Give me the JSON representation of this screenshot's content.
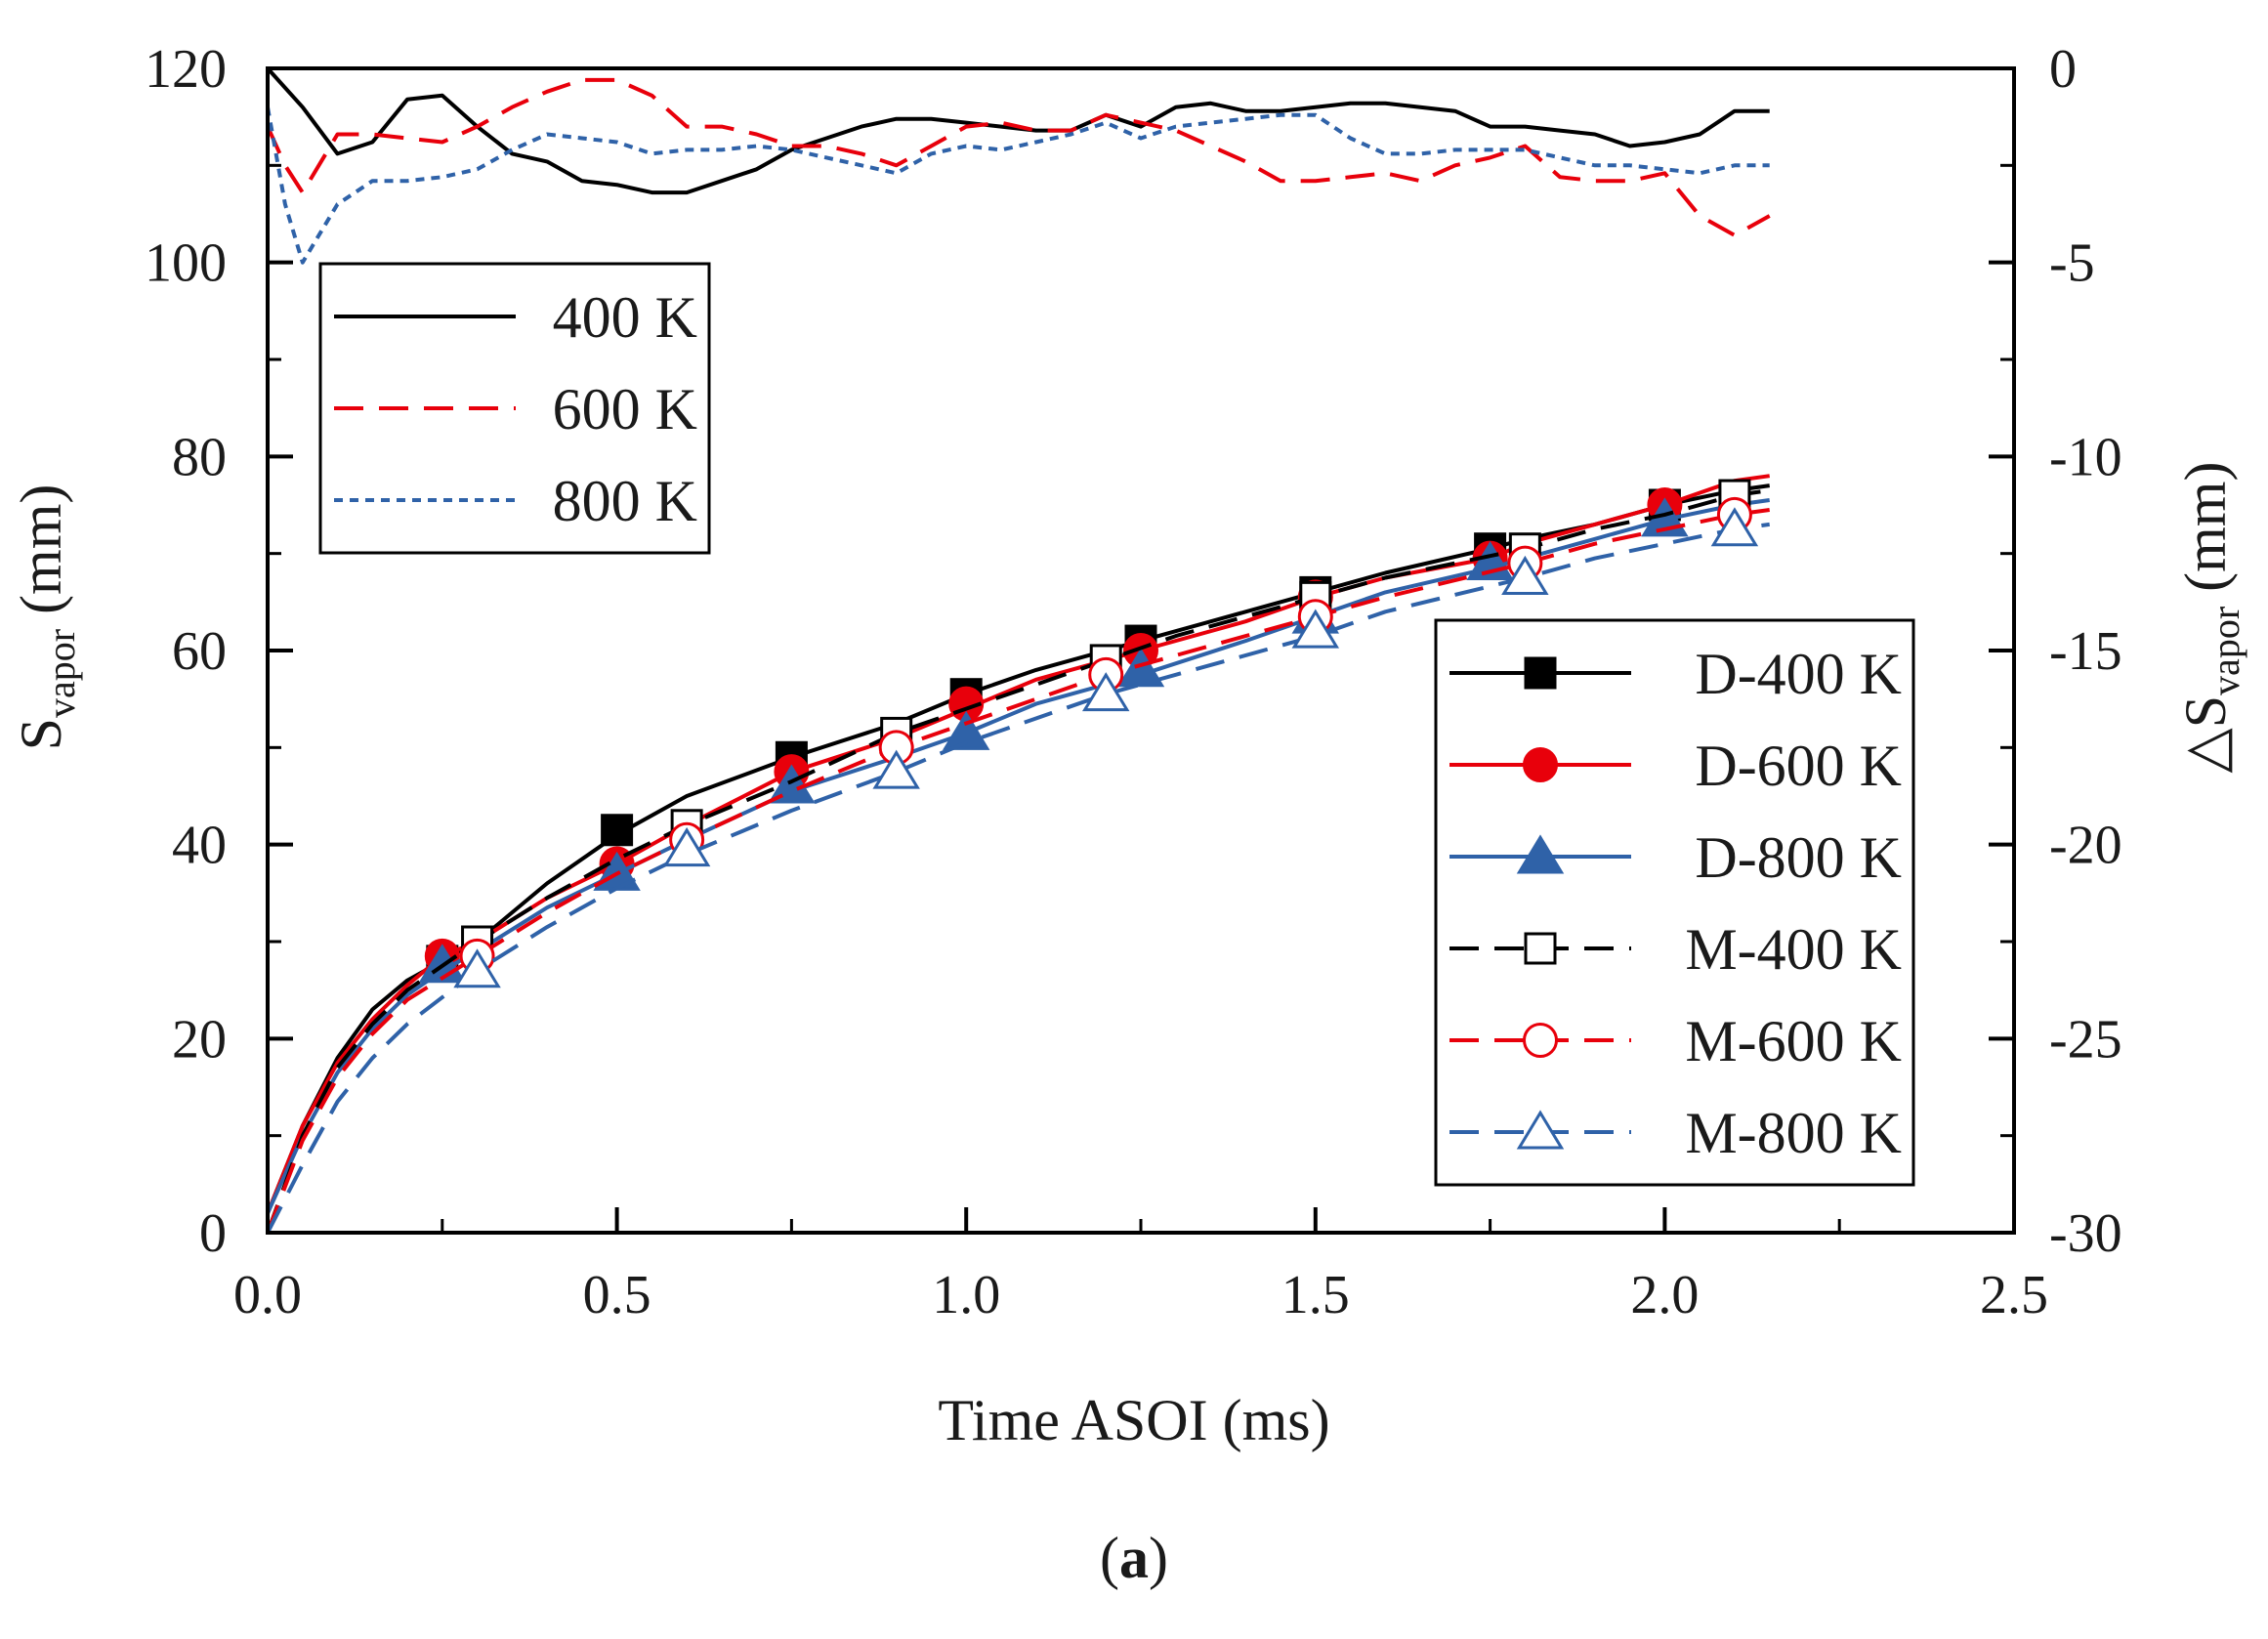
{
  "chart_data": {
    "type": "line",
    "caption_open": "(",
    "caption_letter": "a",
    "caption_close": ")",
    "xlabel": "Time ASOI (ms)",
    "ylabel_main": "S",
    "ylabel_sub": "vapor",
    "ylabel_unit": " (mm)",
    "y2label_prefix": "△S",
    "y2label_sub": "vapor",
    "y2label_unit": " (mm)",
    "xlim": [
      0,
      2.5
    ],
    "ylim": [
      0,
      120
    ],
    "y2lim": [
      -30,
      0
    ],
    "x_ticks": [
      {
        "value": 0,
        "label": "0.0"
      },
      {
        "value": 0.5,
        "label": "0.5"
      },
      {
        "value": 1.0,
        "label": "1.0"
      },
      {
        "value": 1.5,
        "label": "1.5"
      },
      {
        "value": 2.0,
        "label": "2.0"
      },
      {
        "value": 2.5,
        "label": "2.5"
      }
    ],
    "y_ticks": [
      {
        "value": 0,
        "label": "0"
      },
      {
        "value": 20,
        "label": "20"
      },
      {
        "value": 40,
        "label": "40"
      },
      {
        "value": 60,
        "label": "60"
      },
      {
        "value": 80,
        "label": "80"
      },
      {
        "value": 100,
        "label": "100"
      },
      {
        "value": 120,
        "label": "120"
      }
    ],
    "y2_ticks": [
      {
        "value": 0,
        "label": "0"
      },
      {
        "value": -5,
        "label": "-5"
      },
      {
        "value": -10,
        "label": "-10"
      },
      {
        "value": -15,
        "label": "-15"
      },
      {
        "value": -20,
        "label": "-20"
      },
      {
        "value": -25,
        "label": "-25"
      },
      {
        "value": -30,
        "label": "-30"
      }
    ],
    "grid": false,
    "legend_positions": [
      "upper-left",
      "lower-right"
    ],
    "series": [
      {
        "name": "D-400 K",
        "axis": "left",
        "color": "#000000",
        "dash": "solid",
        "marker": "square",
        "marker_fill": "filled",
        "x": [
          0,
          0.05,
          0.1,
          0.15,
          0.2,
          0.25,
          0.3,
          0.4,
          0.5,
          0.6,
          0.75,
          0.9,
          1.0,
          1.1,
          1.25,
          1.4,
          1.5,
          1.6,
          1.75,
          1.8,
          1.9,
          2.0,
          2.1,
          2.15
        ],
        "y": [
          2,
          11,
          18,
          23,
          26,
          28,
          30,
          36,
          41,
          45,
          49,
          52.5,
          55.5,
          58,
          61,
          64,
          66,
          68,
          70.5,
          71.5,
          73,
          75,
          76.5,
          77
        ],
        "marker_x": [
          0.25,
          0.5,
          0.75,
          1.0,
          1.25,
          1.5,
          1.75,
          2.0
        ],
        "marker_y": [
          28,
          41.5,
          49,
          55.5,
          61,
          66,
          70.5,
          75
        ]
      },
      {
        "name": "D-600 K",
        "axis": "left",
        "color": "#e8000b",
        "dash": "solid",
        "marker": "circle",
        "marker_fill": "filled",
        "x": [
          0,
          0.05,
          0.1,
          0.15,
          0.2,
          0.25,
          0.3,
          0.4,
          0.5,
          0.6,
          0.75,
          0.9,
          1.0,
          1.1,
          1.25,
          1.4,
          1.5,
          1.6,
          1.75,
          1.8,
          1.9,
          2.0,
          2.1,
          2.15
        ],
        "y": [
          2,
          11,
          17.5,
          22,
          25.5,
          28.5,
          30,
          34.5,
          38,
          42,
          47.5,
          51,
          54,
          57,
          60,
          63,
          65.5,
          67.5,
          69.5,
          71,
          73,
          75,
          77.5,
          78
        ],
        "marker_x": [
          0.25,
          0.5,
          0.75,
          1.0,
          1.25,
          1.5,
          1.75,
          2.0
        ],
        "marker_y": [
          28.5,
          38,
          47.5,
          54.5,
          60,
          65.5,
          69.5,
          75
        ]
      },
      {
        "name": "D-800 K",
        "axis": "left",
        "color": "#2f62a8",
        "dash": "solid",
        "marker": "triangle",
        "marker_fill": "filled",
        "x": [
          0,
          0.05,
          0.1,
          0.15,
          0.2,
          0.25,
          0.3,
          0.4,
          0.5,
          0.6,
          0.75,
          0.9,
          1.0,
          1.1,
          1.25,
          1.4,
          1.5,
          1.6,
          1.75,
          1.8,
          1.9,
          2.0,
          2.1,
          2.15
        ],
        "y": [
          2,
          10,
          16.5,
          21,
          24.5,
          27,
          29,
          33.5,
          37,
          40.5,
          45.5,
          49,
          51.5,
          54.5,
          57.5,
          61,
          63.5,
          66,
          68.5,
          69.5,
          71.5,
          73.5,
          75,
          75.5
        ],
        "marker_x": [
          0.25,
          0.5,
          0.75,
          1.0,
          1.25,
          1.5,
          1.75,
          2.0
        ],
        "marker_y": [
          27.5,
          37,
          46,
          51.5,
          58,
          63.5,
          69,
          73.5
        ]
      },
      {
        "name": "M-400 K",
        "axis": "left",
        "color": "#000000",
        "dash": "dash",
        "marker": "square",
        "marker_fill": "open",
        "x": [
          0,
          0.05,
          0.1,
          0.15,
          0.2,
          0.3,
          0.4,
          0.5,
          0.6,
          0.75,
          0.9,
          1.0,
          1.1,
          1.2,
          1.3,
          1.5,
          1.6,
          1.8,
          1.9,
          2.0,
          2.1,
          2.15
        ],
        "y": [
          0,
          10,
          17,
          21.5,
          25,
          30,
          34.5,
          38.5,
          42,
          46.5,
          51.5,
          54,
          56.5,
          59,
          61.5,
          65.5,
          67.5,
          70.5,
          72.5,
          74,
          76,
          76.5
        ],
        "marker_x": [
          0.3,
          0.6,
          0.9,
          1.2,
          1.5,
          1.8,
          2.1
        ],
        "marker_y": [
          30,
          42,
          51.5,
          59,
          65.5,
          70.5,
          76
        ]
      },
      {
        "name": "M-600 K",
        "axis": "left",
        "color": "#e8000b",
        "dash": "dash",
        "marker": "circle",
        "marker_fill": "open",
        "x": [
          0,
          0.05,
          0.1,
          0.15,
          0.2,
          0.3,
          0.4,
          0.5,
          0.6,
          0.75,
          0.9,
          1.0,
          1.1,
          1.2,
          1.3,
          1.5,
          1.6,
          1.8,
          1.9,
          2.0,
          2.1,
          2.15
        ],
        "y": [
          0,
          9.5,
          16,
          20.5,
          24,
          28.5,
          33,
          37,
          40.5,
          45.5,
          50,
          52.5,
          55,
          57.5,
          59.5,
          63.5,
          65.5,
          69,
          71,
          72.5,
          74,
          74.5
        ],
        "marker_x": [
          0.3,
          0.6,
          0.9,
          1.2,
          1.5,
          1.8,
          2.1
        ],
        "marker_y": [
          28.5,
          40.5,
          50,
          57.5,
          63.5,
          69,
          74
        ]
      },
      {
        "name": "M-800 K",
        "axis": "left",
        "color": "#2f62a8",
        "dash": "dash",
        "marker": "triangle",
        "marker_fill": "open",
        "x": [
          0,
          0.05,
          0.1,
          0.15,
          0.2,
          0.3,
          0.4,
          0.5,
          0.6,
          0.75,
          0.9,
          1.0,
          1.1,
          1.2,
          1.3,
          1.5,
          1.6,
          1.8,
          1.9,
          2.0,
          2.1,
          2.15
        ],
        "y": [
          0,
          7,
          13.5,
          18,
          21.5,
          27,
          31.5,
          35.5,
          39,
          43.5,
          47.5,
          50.5,
          53,
          55.5,
          57.5,
          61.5,
          64,
          67.5,
          69.5,
          71,
          72.5,
          73
        ],
        "marker_x": [
          0.3,
          0.6,
          0.9,
          1.2,
          1.5,
          1.8,
          2.1
        ],
        "marker_y": [
          27,
          39.5,
          47.5,
          55.5,
          62,
          67.5,
          72.5
        ]
      },
      {
        "name": "400 K",
        "axis": "right",
        "color": "#000000",
        "dash": "solid",
        "marker": "none",
        "x": [
          0,
          0.05,
          0.1,
          0.15,
          0.2,
          0.25,
          0.3,
          0.35,
          0.4,
          0.45,
          0.5,
          0.55,
          0.6,
          0.65,
          0.7,
          0.75,
          0.8,
          0.85,
          0.9,
          0.95,
          1.0,
          1.05,
          1.1,
          1.15,
          1.2,
          1.25,
          1.3,
          1.35,
          1.4,
          1.45,
          1.5,
          1.55,
          1.6,
          1.65,
          1.7,
          1.75,
          1.8,
          1.85,
          1.9,
          1.95,
          2.0,
          2.05,
          2.1,
          2.15
        ],
        "y": [
          0,
          -1,
          -2.2,
          -1.9,
          -0.8,
          -0.7,
          -1.5,
          -2.2,
          -2.4,
          -2.9,
          -3.0,
          -3.2,
          -3.2,
          -2.9,
          -2.6,
          -2.1,
          -1.8,
          -1.5,
          -1.3,
          -1.3,
          -1.4,
          -1.5,
          -1.6,
          -1.6,
          -1.2,
          -1.5,
          -1.0,
          -0.9,
          -1.1,
          -1.1,
          -1.0,
          -0.9,
          -0.9,
          -1.0,
          -1.1,
          -1.5,
          -1.5,
          -1.6,
          -1.7,
          -2.0,
          -1.9,
          -1.7,
          -1.1,
          -1.1
        ]
      },
      {
        "name": "600 K",
        "axis": "right",
        "color": "#e8000b",
        "dash": "dash",
        "marker": "none",
        "x": [
          0,
          0.025,
          0.05,
          0.1,
          0.15,
          0.2,
          0.25,
          0.3,
          0.35,
          0.4,
          0.45,
          0.5,
          0.55,
          0.6,
          0.65,
          0.7,
          0.75,
          0.8,
          0.85,
          0.9,
          0.95,
          1.0,
          1.05,
          1.1,
          1.15,
          1.2,
          1.25,
          1.3,
          1.35,
          1.4,
          1.45,
          1.5,
          1.55,
          1.6,
          1.65,
          1.7,
          1.75,
          1.8,
          1.85,
          1.9,
          1.95,
          2.0,
          2.05,
          2.1,
          2.15
        ],
        "y": [
          -1.5,
          -2.5,
          -3.2,
          -1.7,
          -1.7,
          -1.8,
          -1.9,
          -1.5,
          -1.0,
          -0.6,
          -0.3,
          -0.3,
          -0.7,
          -1.5,
          -1.5,
          -1.7,
          -2.0,
          -2.0,
          -2.2,
          -2.5,
          -2.0,
          -1.5,
          -1.4,
          -1.6,
          -1.6,
          -1.2,
          -1.4,
          -1.6,
          -2.0,
          -2.4,
          -2.9,
          -2.9,
          -2.8,
          -2.7,
          -2.9,
          -2.5,
          -2.3,
          -2.0,
          -2.8,
          -2.9,
          -2.9,
          -2.7,
          -3.8,
          -4.3,
          -3.8
        ]
      },
      {
        "name": "800 K",
        "axis": "right",
        "color": "#2f62a8",
        "dash": "dot",
        "marker": "none",
        "x": [
          0,
          0.025,
          0.05,
          0.1,
          0.15,
          0.2,
          0.25,
          0.3,
          0.35,
          0.4,
          0.45,
          0.5,
          0.55,
          0.6,
          0.65,
          0.7,
          0.75,
          0.8,
          0.85,
          0.9,
          0.95,
          1.0,
          1.05,
          1.1,
          1.15,
          1.2,
          1.25,
          1.3,
          1.35,
          1.4,
          1.45,
          1.5,
          1.55,
          1.6,
          1.65,
          1.7,
          1.75,
          1.8,
          1.85,
          1.9,
          1.95,
          2.0,
          2.05,
          2.1,
          2.15
        ],
        "y": [
          -1.0,
          -3.5,
          -5.0,
          -3.5,
          -2.9,
          -2.9,
          -2.8,
          -2.6,
          -2.1,
          -1.7,
          -1.8,
          -1.9,
          -2.2,
          -2.1,
          -2.1,
          -2.0,
          -2.1,
          -2.3,
          -2.5,
          -2.7,
          -2.2,
          -2.0,
          -2.1,
          -1.9,
          -1.7,
          -1.4,
          -1.8,
          -1.5,
          -1.4,
          -1.3,
          -1.2,
          -1.2,
          -1.8,
          -2.2,
          -2.2,
          -2.1,
          -2.1,
          -2.1,
          -2.3,
          -2.5,
          -2.5,
          -2.6,
          -2.7,
          -2.5,
          -2.5
        ]
      }
    ],
    "legend_top": [
      "400 K",
      "600 K",
      "800 K"
    ],
    "legend_bottom": [
      "D-400 K",
      "D-600 K",
      "D-800 K",
      "M-400 K",
      "M-600 K",
      "M-800 K"
    ]
  }
}
